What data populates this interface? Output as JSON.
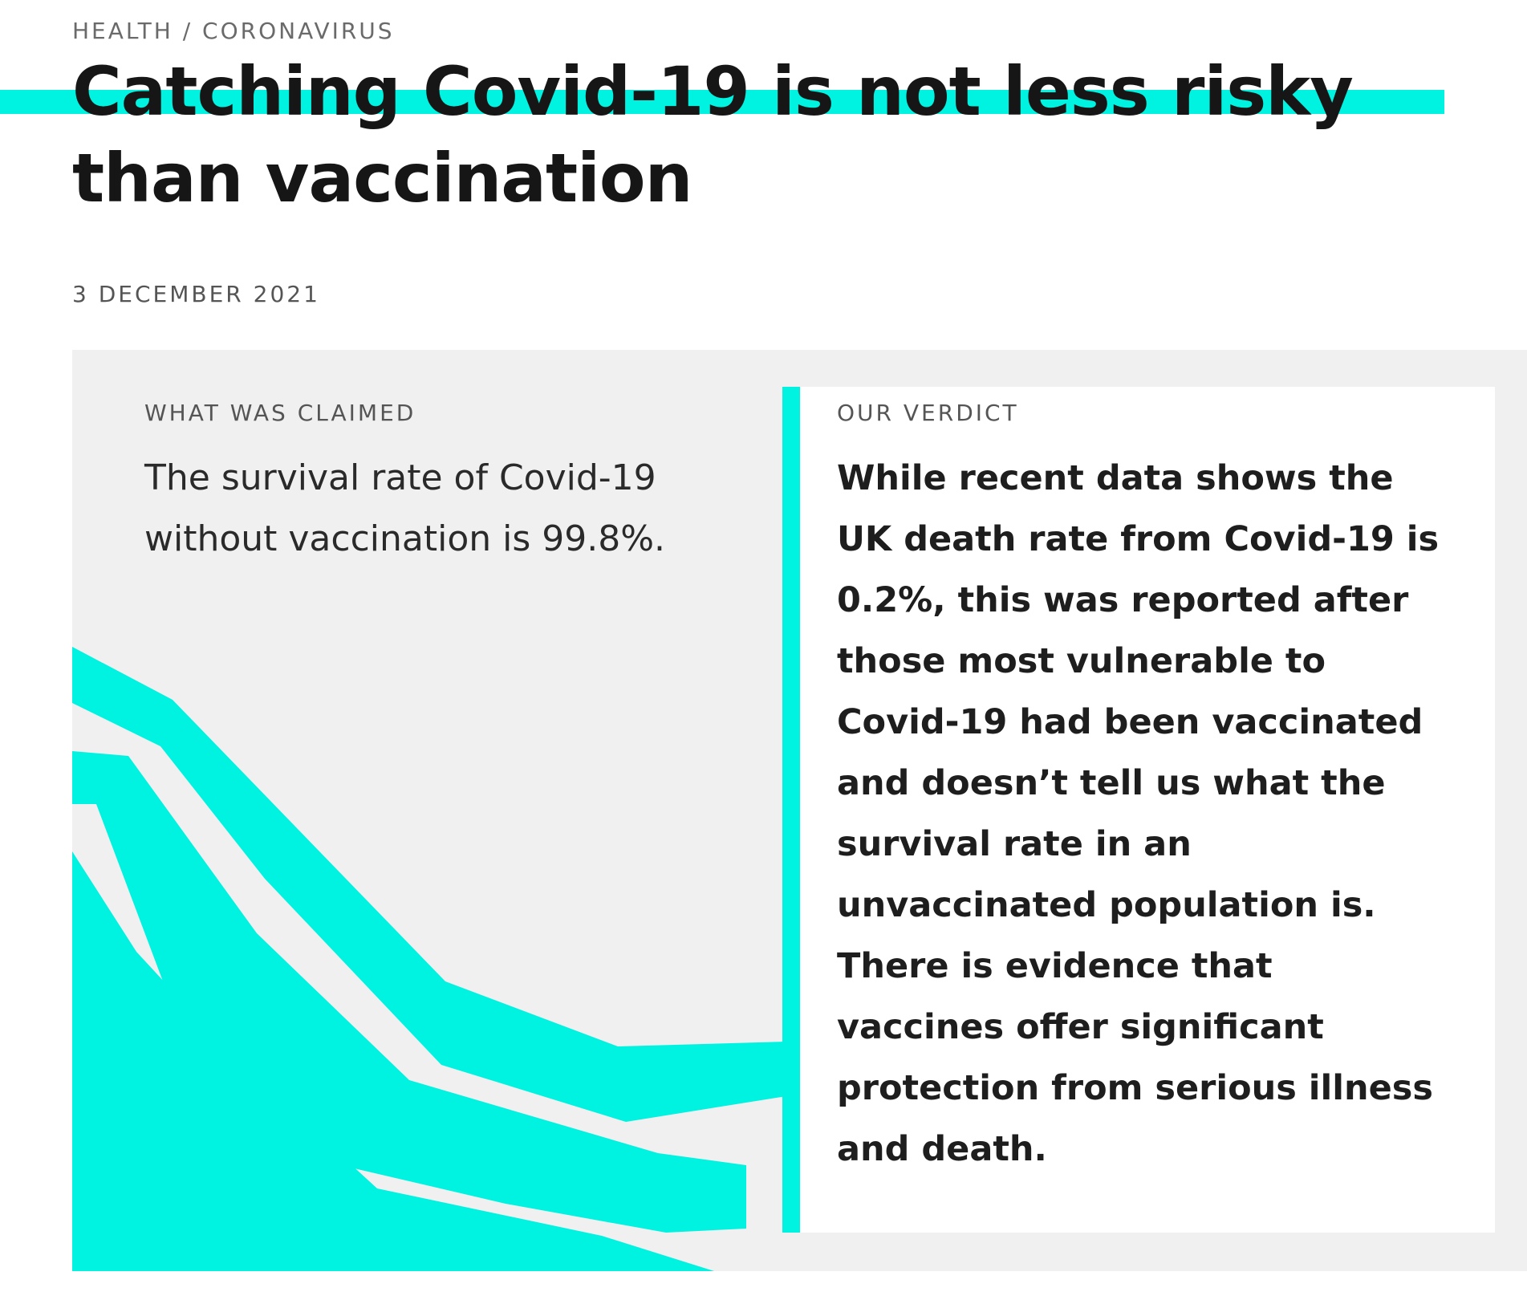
{
  "breadcrumb": {
    "category": "HEALTH",
    "separator": " / ",
    "subcategory": "CORONAVIRUS"
  },
  "article": {
    "title": "Catching Covid-19 is not less risky than vaccination",
    "date": "3 DECEMBER 2021"
  },
  "claim": {
    "label": "WHAT WAS CLAIMED",
    "text": "The survival rate of Covid-19 without vaccination is 99.8%."
  },
  "verdict": {
    "label": "OUR VERDICT",
    "text": "While recent data shows the UK death rate from Covid-19 is 0.2%, this was reported after those most vulnerable to Covid-19 had been vaccinated and doesn’t tell us what the survival rate in an unvaccinated population is. There is evidence that vaccines offer significant protection from serious illness and death."
  },
  "colors": {
    "accent": "#00f2e0",
    "panel_background": "#f0f0f0",
    "text": "#1a1a1a",
    "muted_text": "#555555"
  }
}
